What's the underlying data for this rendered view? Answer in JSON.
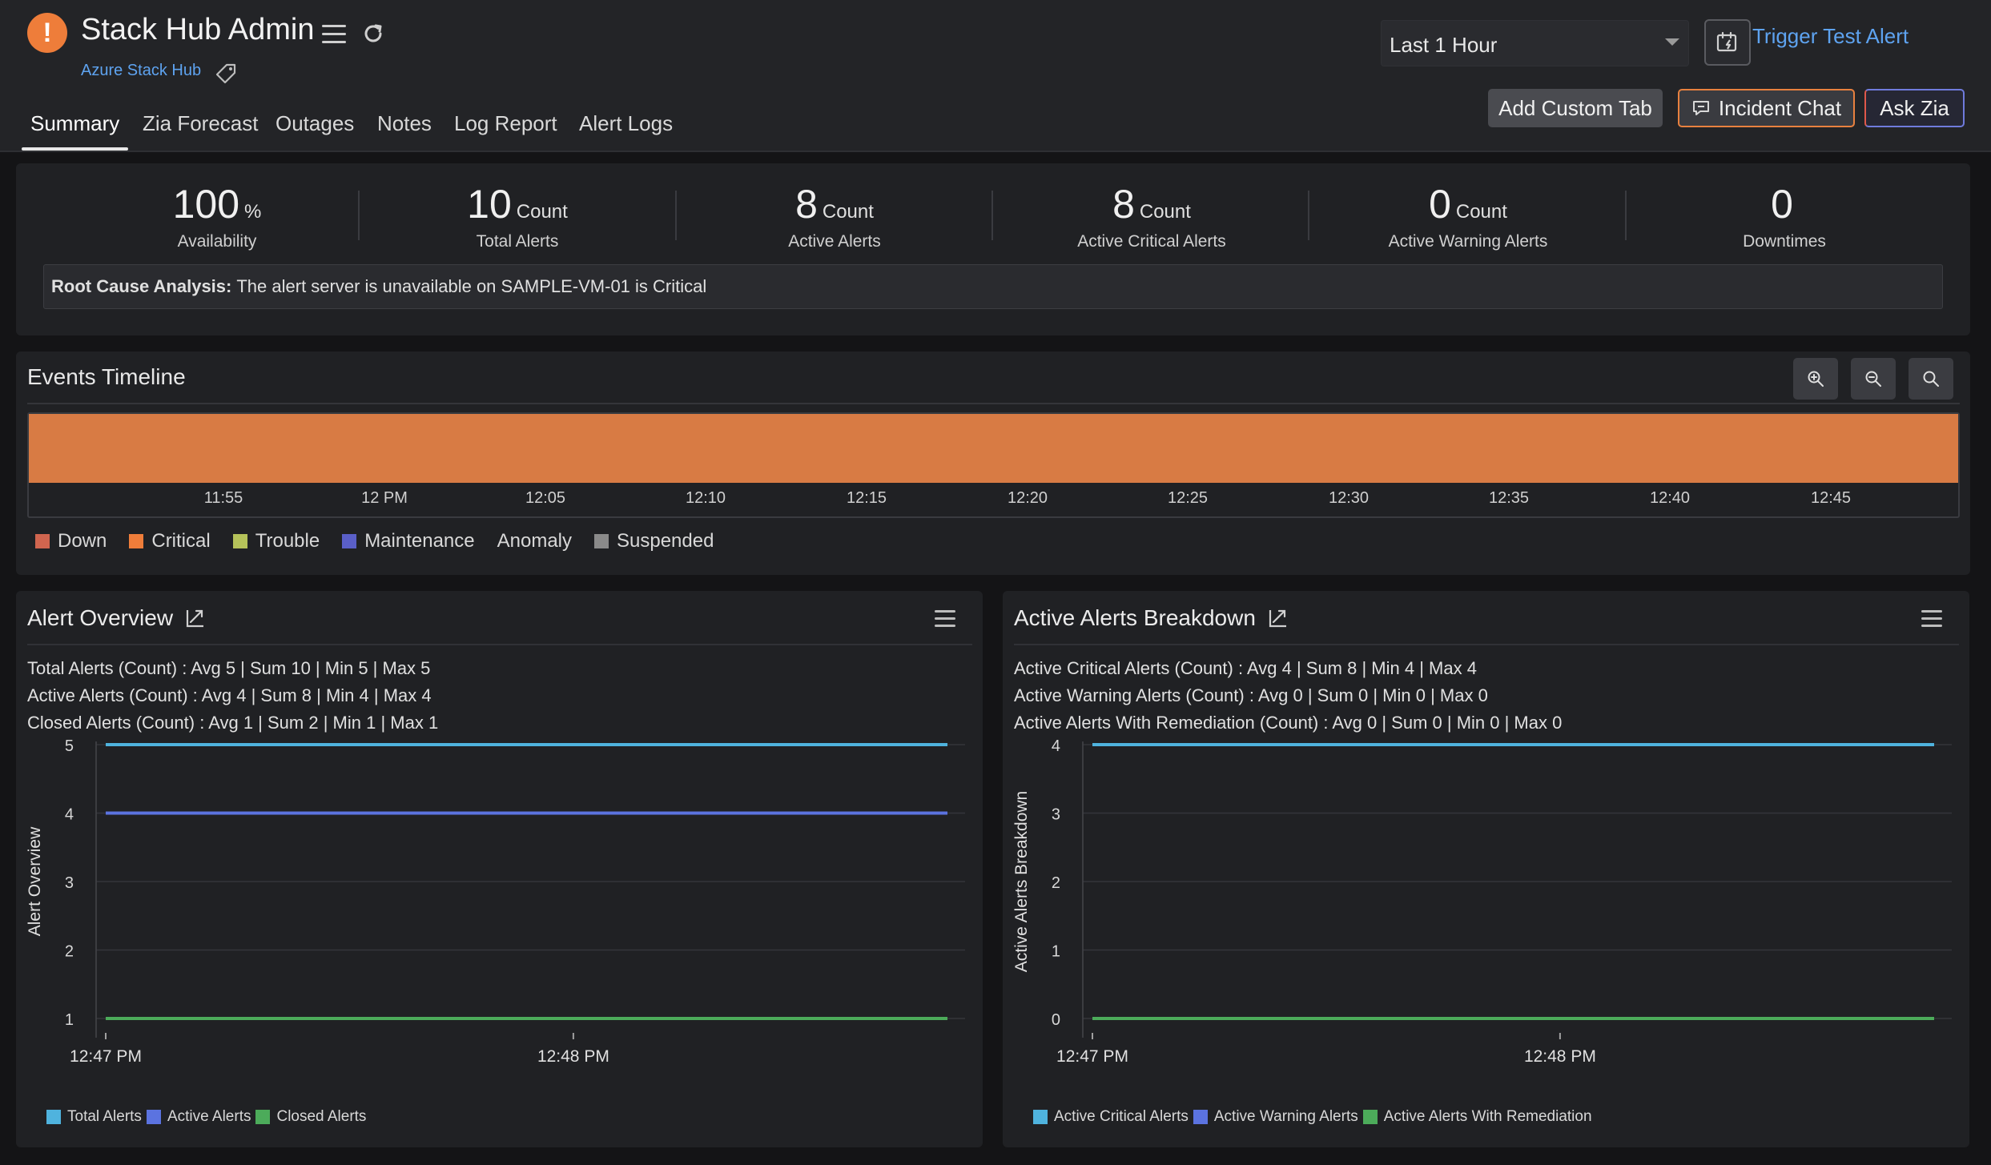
{
  "header": {
    "status_glyph": "!",
    "monitor_title": "Stack Hub Admin",
    "monitor_type": "Azure Stack Hub",
    "period": "Last 1 Hour",
    "trigger_test_alert": "Trigger Test Alert",
    "add_custom_tab": "Add Custom Tab",
    "incident_chat": "Incident Chat",
    "ask_zia": "Ask Zia",
    "icons": [
      "alert-status-icon",
      "hamburger-icon",
      "refresh-icon",
      "tag-icon",
      "trigger-icon",
      "chat-icon",
      "chevron-down-icon"
    ],
    "accent_color": "#ee7d3a",
    "link_color": "#5ea3f0"
  },
  "tabs": [
    "Summary",
    "Zia Forecast",
    "Outages",
    "Notes",
    "Log Report",
    "Alert Logs"
  ],
  "summary": {
    "metrics": [
      {
        "value": "100",
        "unit": "%",
        "label": "Availability"
      },
      {
        "value": "10",
        "unit": "Count",
        "label": "Total Alerts"
      },
      {
        "value": "8",
        "unit": "Count",
        "label": "Active Alerts"
      },
      {
        "value": "8",
        "unit": "Count",
        "label": "Active Critical Alerts"
      },
      {
        "value": "0",
        "unit": "Count",
        "label": "Active Warning Alerts"
      },
      {
        "value": "0",
        "unit": "",
        "label": "Downtimes"
      }
    ],
    "rca_label": "Root Cause Analysis:",
    "rca_text": "The alert server is unavailable on SAMPLE-VM-01 is Critical"
  },
  "timeline": {
    "title": "Events Timeline",
    "ticks": [
      "11:55",
      "12 PM",
      "12:05",
      "12:10",
      "12:15",
      "12:20",
      "12:25",
      "12:30",
      "12:35",
      "12:40",
      "12:45"
    ],
    "bar_status": "Critical",
    "bar_color": "#d87b44",
    "legend": [
      {
        "label": "Down",
        "color": "#d0654f"
      },
      {
        "label": "Critical",
        "color": "#ee7d3a"
      },
      {
        "label": "Trouble",
        "color": "#b5c25a"
      },
      {
        "label": "Maintenance",
        "color": "#5a5fc8"
      },
      {
        "label": "Anomaly",
        "color": ""
      },
      {
        "label": "Suspended",
        "color": "#8a8a8a"
      }
    ],
    "zoom_icons": [
      "zoom-in-icon",
      "zoom-out-icon",
      "zoom-reset-icon"
    ]
  },
  "chart_data": [
    {
      "type": "line",
      "title": "Alert Overview",
      "stats": [
        "Total Alerts (Count) :  Avg 5   |  Sum 10   |  Min 5   |  Max 5",
        "Active Alerts (Count) :  Avg 4   |  Sum 8   |  Min 4   |  Max 4",
        "Closed Alerts (Count) :  Avg 1   |  Sum 2   |  Min 1   |  Max 1"
      ],
      "ylabel": "Alert Overview",
      "xlabel": "",
      "ylim": [
        1,
        5
      ],
      "y_ticks": [
        1,
        2,
        3,
        4,
        5
      ],
      "x_ticks": [
        "12:47 PM",
        "12:48 PM"
      ],
      "x": [
        0,
        1.8
      ],
      "series": [
        {
          "name": "Total Alerts",
          "color": "#4fb3de",
          "values": [
            5,
            5
          ]
        },
        {
          "name": "Active Alerts",
          "color": "#5b73e0",
          "values": [
            4,
            4
          ]
        },
        {
          "name": "Closed Alerts",
          "color": "#4cab5a",
          "values": [
            1,
            1
          ]
        }
      ],
      "grid": true
    },
    {
      "type": "line",
      "title": "Active Alerts Breakdown",
      "stats": [
        "Active Critical Alerts (Count) :  Avg 4   |  Sum 8   |  Min 4   |  Max 4",
        "Active Warning Alerts (Count) :  Avg 0   |  Sum 0   |  Min 0   |  Max 0",
        "Active Alerts With Remediation (Count) :  Avg 0   |  Sum 0   |  Min 0   |  Max 0"
      ],
      "ylabel": "Active Alerts Breakdown",
      "xlabel": "",
      "ylim": [
        0,
        4
      ],
      "y_ticks": [
        0,
        1,
        2,
        3,
        4
      ],
      "x_ticks": [
        "12:47 PM",
        "12:48 PM"
      ],
      "x": [
        0,
        1.8
      ],
      "series": [
        {
          "name": "Active Critical Alerts",
          "color": "#4fb3de",
          "values": [
            4,
            4
          ]
        },
        {
          "name": "Active Warning Alerts",
          "color": "#5b73e0",
          "values": [
            0,
            0
          ]
        },
        {
          "name": "Active Alerts With Remediation",
          "color": "#4cab5a",
          "values": [
            0,
            0
          ]
        }
      ],
      "grid": true
    }
  ]
}
